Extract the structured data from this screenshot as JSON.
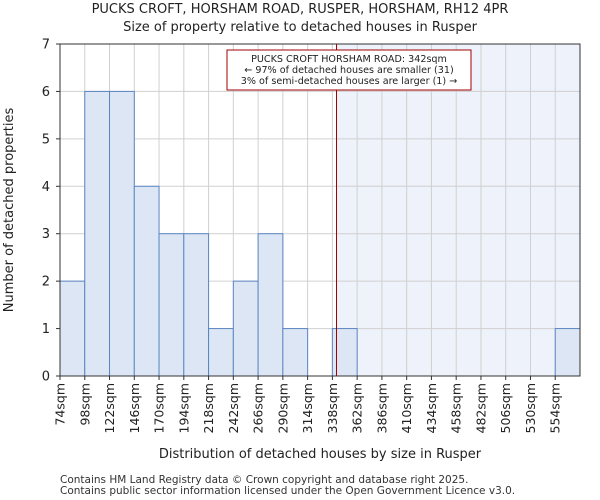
{
  "chart_data": {
    "type": "bar",
    "title": "PUCKS CROFT, HORSHAM ROAD, RUSPER, HORSHAM, RH12 4PR",
    "subtitle": "Size of property relative to detached houses in Rusper",
    "xlabel": "Distribution of detached houses by size in Rusper",
    "ylabel": "Number of detached properties",
    "categories": [
      "74sqm",
      "98sqm",
      "122sqm",
      "146sqm",
      "170sqm",
      "194sqm",
      "218sqm",
      "242sqm",
      "266sqm",
      "290sqm",
      "314sqm",
      "338sqm",
      "362sqm",
      "386sqm",
      "410sqm",
      "434sqm",
      "458sqm",
      "482sqm",
      "506sqm",
      "530sqm",
      "554sqm"
    ],
    "values": [
      2,
      6,
      6,
      4,
      3,
      3,
      1,
      2,
      3,
      1,
      0,
      1,
      0,
      0,
      0,
      0,
      0,
      0,
      0,
      0,
      1
    ],
    "ylim": [
      0,
      7
    ],
    "yticks": [
      0,
      1,
      2,
      3,
      4,
      5,
      6,
      7
    ],
    "grid": true,
    "marker": {
      "value_sqm": 342,
      "lines": [
        "PUCKS CROFT HORSHAM ROAD: 342sqm",
        "← 97% of detached houses are smaller (31)",
        "3% of semi-detached houses are larger (1) →"
      ]
    },
    "colors": {
      "bar_fill": "#dce6f4",
      "bar_stroke": "#5b86c2",
      "highlight_region": "#eef2fa",
      "marker_line": "#a00000",
      "grid": "#d0d0d0"
    }
  },
  "footer": {
    "line1": "Contains HM Land Registry data © Crown copyright and database right 2025.",
    "line2": "Contains public sector information licensed under the Open Government Licence v3.0."
  }
}
